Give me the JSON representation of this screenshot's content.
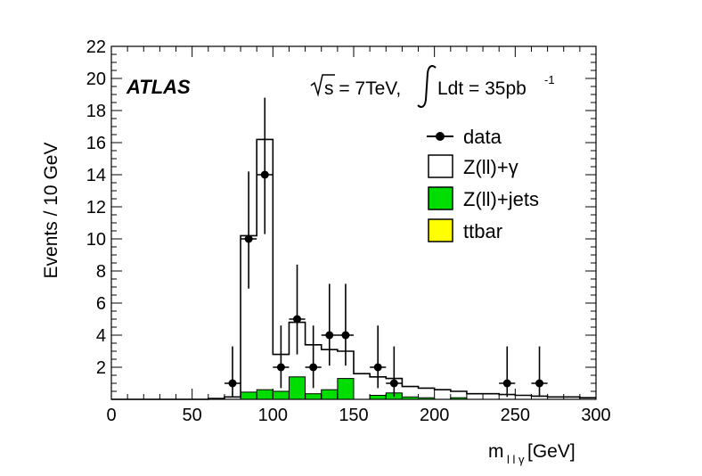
{
  "chart_data": {
    "type": "histogram",
    "experiment": "ATLAS",
    "energy_label": "s = 7TeV,",
    "lumi_label": "Ldt = 35pb",
    "lumi_exponent": "-1",
    "xlabel": "m",
    "xlabel_sub": "l l γ",
    "xlabel_unit": "[GeV]",
    "ylabel": "Events / 10 GeV",
    "xlim": [
      0,
      300
    ],
    "ylim": [
      0,
      22
    ],
    "x_ticks": [
      0,
      50,
      100,
      150,
      200,
      250,
      300
    ],
    "y_ticks": [
      2,
      4,
      6,
      8,
      10,
      12,
      14,
      16,
      18,
      20,
      22
    ],
    "bin_edges": [
      0,
      10,
      20,
      30,
      40,
      50,
      60,
      70,
      80,
      90,
      100,
      110,
      120,
      130,
      140,
      150,
      160,
      170,
      180,
      190,
      200,
      210,
      220,
      230,
      240,
      250,
      260,
      270,
      280,
      290,
      300
    ],
    "series": [
      {
        "name": "Z(ll)+γ",
        "style": "outline",
        "values": [
          0,
          0,
          0,
          0,
          0,
          0,
          0.05,
          0.15,
          10.2,
          16.2,
          2.8,
          4.8,
          3.4,
          3.1,
          3.0,
          1.6,
          1.4,
          1.3,
          0.8,
          0.7,
          0.6,
          0.5,
          0.35,
          0.35,
          0.3,
          0.25,
          0.2,
          0.15,
          0.15,
          0.1
        ]
      },
      {
        "name": "Z(ll)+jets",
        "style": "fill",
        "color": "#00dd00",
        "values": [
          0,
          0,
          0,
          0,
          0,
          0,
          0,
          0,
          0.45,
          0.6,
          0.5,
          1.4,
          0.35,
          0.6,
          1.3,
          0,
          0.25,
          0.4,
          0.15,
          0.1,
          0,
          0.1,
          0,
          0,
          0,
          0,
          0,
          0,
          0,
          0
        ]
      },
      {
        "name": "ttbar",
        "style": "fill",
        "color": "#ffff00",
        "values": [
          0,
          0,
          0,
          0,
          0,
          0,
          0,
          0,
          0,
          0,
          0,
          0,
          0,
          0,
          0,
          0,
          0,
          0,
          0,
          0,
          0,
          0,
          0,
          0,
          0,
          0,
          0,
          0,
          0,
          0
        ]
      }
    ],
    "data_points": [
      {
        "x": 75,
        "y": 1,
        "yerr_lo": 0.85,
        "yerr_hi": 2.3
      },
      {
        "x": 85,
        "y": 10,
        "yerr_lo": 3.1,
        "yerr_hi": 4.2
      },
      {
        "x": 95,
        "y": 14,
        "yerr_lo": 3.7,
        "yerr_hi": 4.8
      },
      {
        "x": 105,
        "y": 2,
        "yerr_lo": 1.3,
        "yerr_hi": 2.6
      },
      {
        "x": 115,
        "y": 5,
        "yerr_lo": 2.2,
        "yerr_hi": 3.4
      },
      {
        "x": 125,
        "y": 2,
        "yerr_lo": 1.3,
        "yerr_hi": 2.6
      },
      {
        "x": 135,
        "y": 4,
        "yerr_lo": 1.9,
        "yerr_hi": 3.2
      },
      {
        "x": 145,
        "y": 4,
        "yerr_lo": 1.9,
        "yerr_hi": 3.2
      },
      {
        "x": 165,
        "y": 2,
        "yerr_lo": 1.3,
        "yerr_hi": 2.6
      },
      {
        "x": 175,
        "y": 1,
        "yerr_lo": 0.85,
        "yerr_hi": 2.3
      },
      {
        "x": 245,
        "y": 1,
        "yerr_lo": 0.85,
        "yerr_hi": 2.3
      },
      {
        "x": 265,
        "y": 1,
        "yerr_lo": 0.85,
        "yerr_hi": 2.3
      }
    ],
    "legend": {
      "position": "top-right",
      "entries": [
        {
          "label": "data",
          "style": "marker"
        },
        {
          "label": "Z(ll)+γ",
          "style": "outline"
        },
        {
          "label": "Z(ll)+jets",
          "style": "fill",
          "color": "#00dd00"
        },
        {
          "label": "ttbar",
          "style": "fill",
          "color": "#ffff00"
        }
      ]
    }
  }
}
